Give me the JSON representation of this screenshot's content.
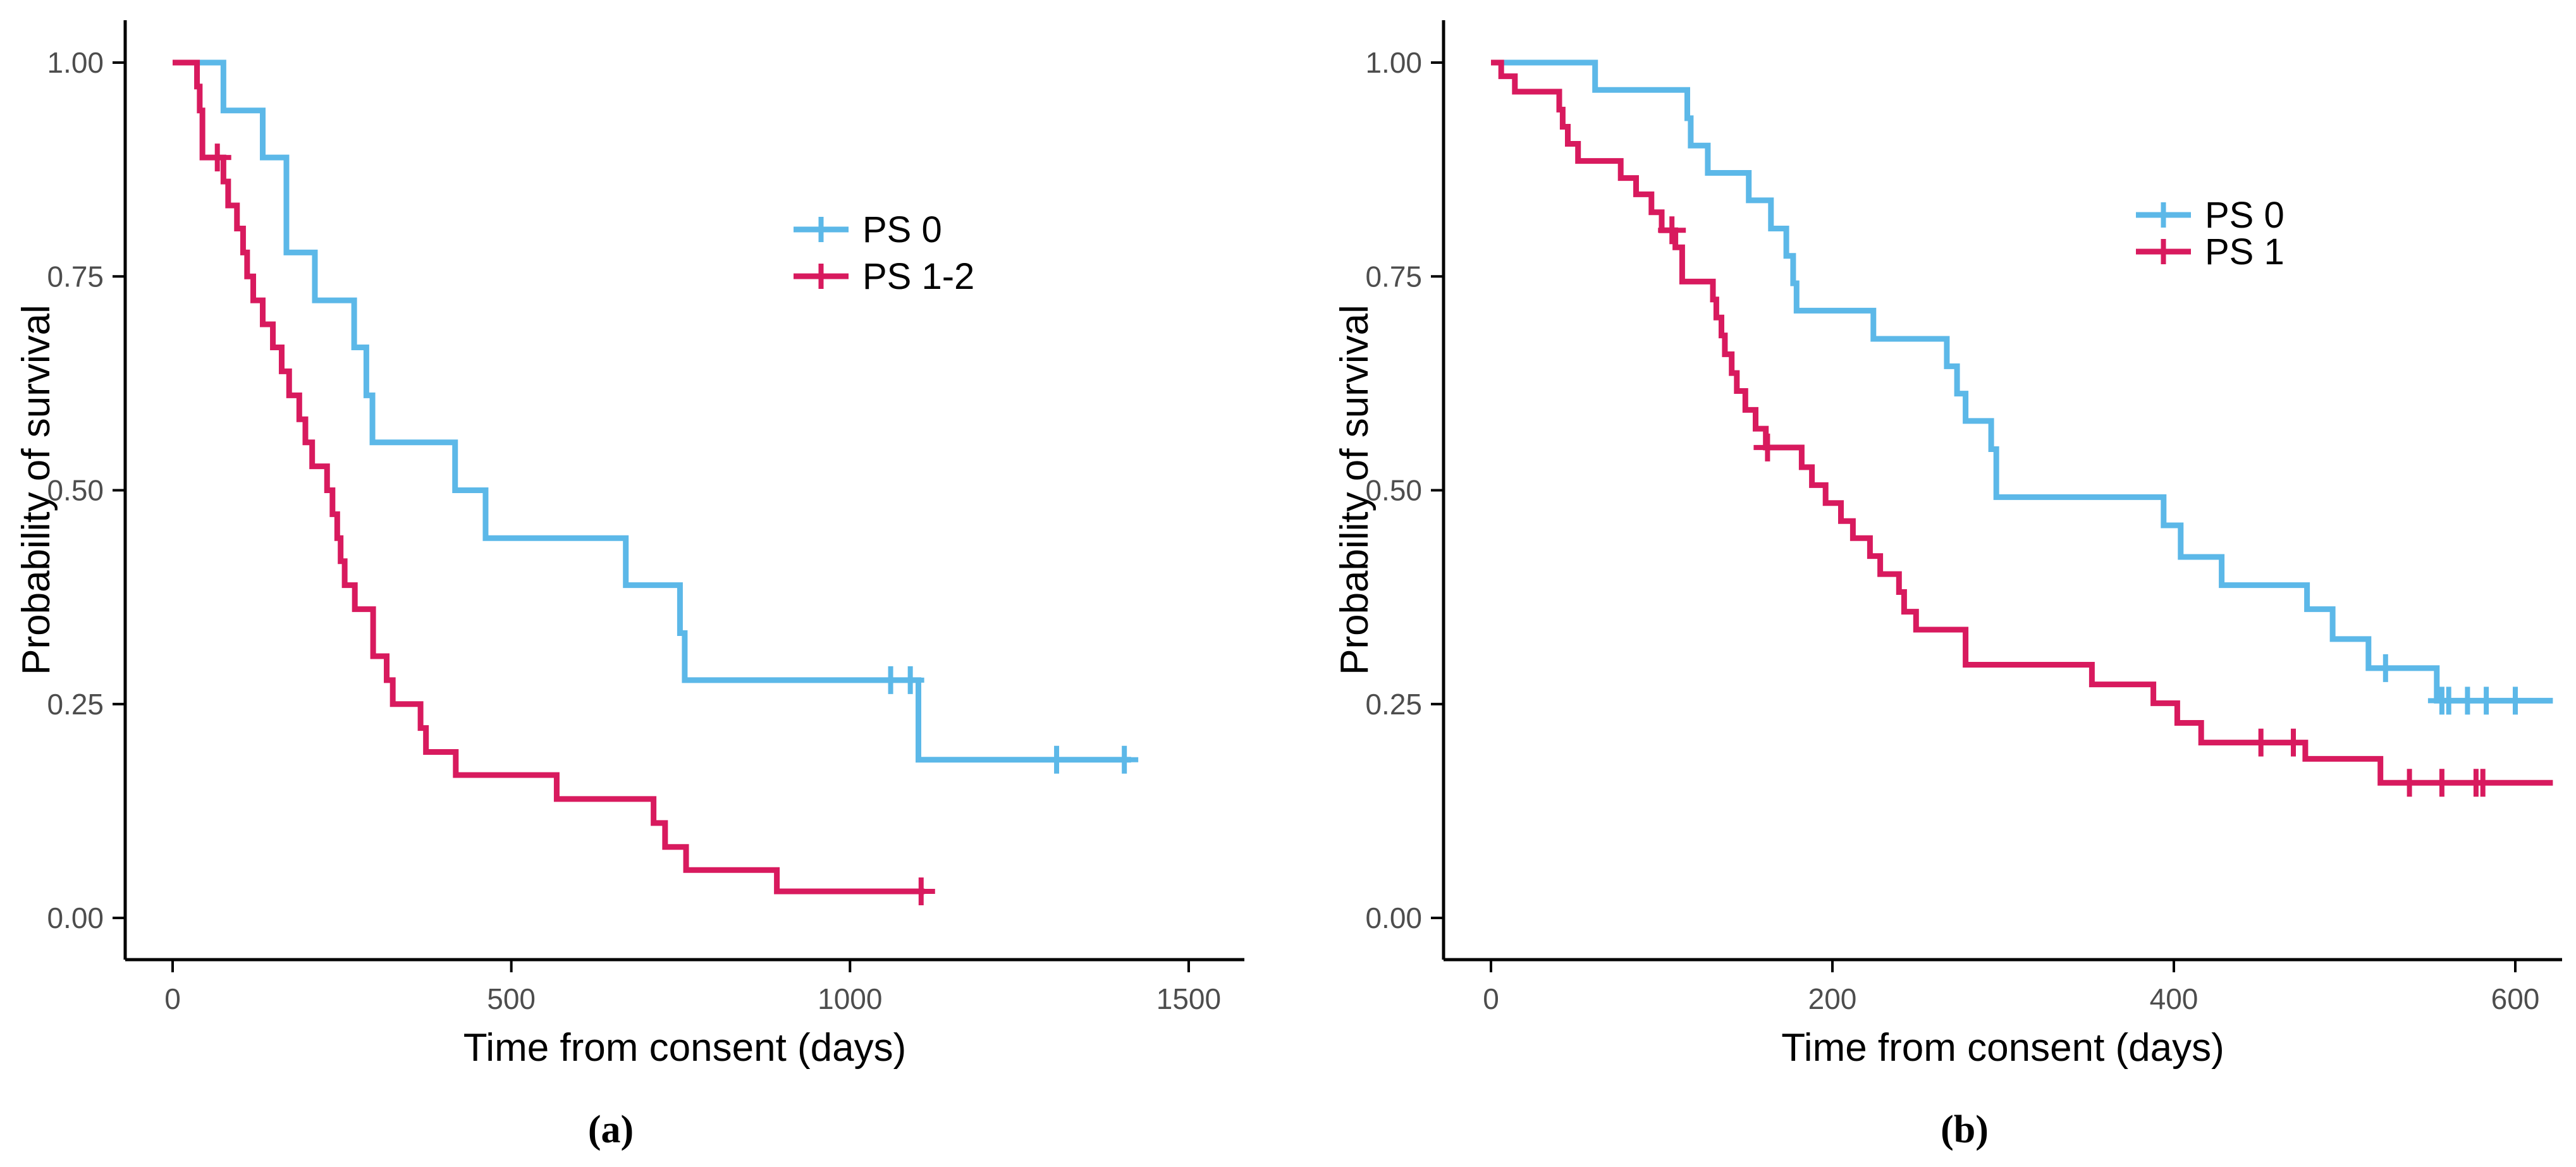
{
  "figure": {
    "background": "#ffffff",
    "axis_color": "#000000",
    "tick_label_color": "#4d4d4d",
    "captions": [
      "(a)",
      "(b)"
    ]
  },
  "chart_data": [
    {
      "id": "a",
      "type": "line",
      "subtype": "kaplan-meier-step",
      "caption": "(a)",
      "title": "",
      "xlabel": "Time from consent (days)",
      "ylabel": "Probability of survival",
      "xlim": [
        0,
        1500
      ],
      "ylim": [
        0,
        1
      ],
      "grid": false,
      "legend_position": "inside-upper-right",
      "xticks": [
        0,
        500,
        1000,
        1500
      ],
      "xtick_labels": [
        "0",
        "500",
        "1000",
        "1500"
      ],
      "yticks": [
        0,
        0.25,
        0.5,
        0.75,
        1
      ],
      "ytick_labels": [
        "0.00",
        "0.25",
        "0.50",
        "0.75",
        "1.00"
      ],
      "series": [
        {
          "name": "PS 0",
          "color": "#5CB8E8",
          "end": 1415,
          "steps": [
            [
              0,
              1
            ],
            [
              75,
              0.944
            ],
            [
              133,
              0.889
            ],
            [
              168,
              0.778
            ],
            [
              210,
              0.722
            ],
            [
              268,
              0.667
            ],
            [
              286,
              0.611
            ],
            [
              295,
              0.556
            ],
            [
              417,
              0.5
            ],
            [
              462,
              0.444
            ],
            [
              669,
              0.389
            ],
            [
              749,
              0.333
            ],
            [
              756,
              0.278
            ],
            [
              1101,
              0.185
            ]
          ],
          "censors": [
            [
              1060,
              0.278
            ],
            [
              1089,
              0.278
            ],
            [
              1305,
              0.185
            ],
            [
              1405,
              0.185
            ]
          ]
        },
        {
          "name": "PS 1-2",
          "color": "#D81A5E",
          "end": 1110,
          "steps": [
            [
              0,
              1
            ],
            [
              36,
              0.972
            ],
            [
              40,
              0.944
            ],
            [
              44,
              0.889
            ],
            [
              75,
              0.861
            ],
            [
              82,
              0.833
            ],
            [
              95,
              0.806
            ],
            [
              104,
              0.778
            ],
            [
              110,
              0.75
            ],
            [
              119,
              0.722
            ],
            [
              133,
              0.694
            ],
            [
              148,
              0.667
            ],
            [
              161,
              0.639
            ],
            [
              172,
              0.611
            ],
            [
              187,
              0.583
            ],
            [
              196,
              0.556
            ],
            [
              206,
              0.528
            ],
            [
              228,
              0.5
            ],
            [
              236,
              0.472
            ],
            [
              243,
              0.444
            ],
            [
              248,
              0.417
            ],
            [
              254,
              0.389
            ],
            [
              269,
              0.361
            ],
            [
              296,
              0.306
            ],
            [
              316,
              0.278
            ],
            [
              325,
              0.25
            ],
            [
              366,
              0.222
            ],
            [
              374,
              0.194
            ],
            [
              418,
              0.167
            ],
            [
              567,
              0.139
            ],
            [
              710,
              0.111
            ],
            [
              727,
              0.083
            ],
            [
              758,
              0.056
            ],
            [
              892,
              0.031
            ]
          ],
          "censors": [
            [
              66,
              0.889
            ],
            [
              1105,
              0.031
            ]
          ]
        }
      ]
    },
    {
      "id": "b",
      "type": "line",
      "subtype": "kaplan-meier-step",
      "caption": "(b)",
      "title": "",
      "xlabel": "Time from consent (days)",
      "ylabel": "Probability of survival",
      "xlim": [
        0,
        620
      ],
      "ylim": [
        0,
        1
      ],
      "grid": false,
      "legend_position": "inside-upper-right",
      "xticks": [
        0,
        200,
        400,
        600
      ],
      "xtick_labels": [
        "0",
        "200",
        "400",
        "600"
      ],
      "yticks": [
        0,
        0.25,
        0.5,
        0.75,
        1
      ],
      "ytick_labels": [
        "0.00",
        "0.25",
        "0.50",
        "0.75",
        "1.00"
      ],
      "series": [
        {
          "name": "PS 0",
          "color": "#5CB8E8",
          "end": 622,
          "steps": [
            [
              0,
              1
            ],
            [
              61,
              0.968
            ],
            [
              115,
              0.935
            ],
            [
              117,
              0.903
            ],
            [
              127,
              0.871
            ],
            [
              151,
              0.839
            ],
            [
              164,
              0.806
            ],
            [
              173,
              0.774
            ],
            [
              177,
              0.742
            ],
            [
              179,
              0.71
            ],
            [
              224,
              0.677
            ],
            [
              267,
              0.645
            ],
            [
              273,
              0.613
            ],
            [
              278,
              0.581
            ],
            [
              293,
              0.548
            ],
            [
              296,
              0.492
            ],
            [
              394,
              0.459
            ],
            [
              404,
              0.422
            ],
            [
              428,
              0.389
            ],
            [
              478,
              0.361
            ],
            [
              493,
              0.326
            ],
            [
              514,
              0.292
            ],
            [
              554,
              0.254
            ]
          ],
          "censors": [
            [
              524,
              0.292
            ],
            [
              557,
              0.254
            ],
            [
              561,
              0.254
            ],
            [
              572,
              0.254
            ],
            [
              583,
              0.254
            ],
            [
              600,
              0.254
            ]
          ]
        },
        {
          "name": "PS 1",
          "color": "#D81A5E",
          "end": 622,
          "steps": [
            [
              0,
              1
            ],
            [
              6,
              0.984
            ],
            [
              14,
              0.966
            ],
            [
              40,
              0.945
            ],
            [
              42,
              0.925
            ],
            [
              45,
              0.905
            ],
            [
              51,
              0.885
            ],
            [
              76,
              0.865
            ],
            [
              85,
              0.846
            ],
            [
              94,
              0.825
            ],
            [
              100,
              0.804
            ],
            [
              108,
              0.784
            ],
            [
              112,
              0.744
            ],
            [
              130,
              0.723
            ],
            [
              132,
              0.702
            ],
            [
              135,
              0.681
            ],
            [
              137,
              0.659
            ],
            [
              141,
              0.637
            ],
            [
              144,
              0.616
            ],
            [
              149,
              0.594
            ],
            [
              155,
              0.572
            ],
            [
              161,
              0.55
            ],
            [
              182,
              0.527
            ],
            [
              188,
              0.506
            ],
            [
              196,
              0.485
            ],
            [
              205,
              0.464
            ],
            [
              212,
              0.444
            ],
            [
              222,
              0.423
            ],
            [
              228,
              0.402
            ],
            [
              239,
              0.381
            ],
            [
              242,
              0.358
            ],
            [
              249,
              0.337
            ],
            [
              278,
              0.296
            ],
            [
              352,
              0.273
            ],
            [
              388,
              0.251
            ],
            [
              402,
              0.228
            ],
            [
              416,
              0.205
            ],
            [
              477,
              0.186
            ],
            [
              521,
              0.158
            ]
          ],
          "censors": [
            [
              106,
              0.804
            ],
            [
              162,
              0.55
            ],
            [
              451,
              0.205
            ],
            [
              470,
              0.205
            ],
            [
              538,
              0.158
            ],
            [
              557,
              0.158
            ],
            [
              577,
              0.158
            ],
            [
              581,
              0.158
            ]
          ]
        }
      ]
    }
  ]
}
